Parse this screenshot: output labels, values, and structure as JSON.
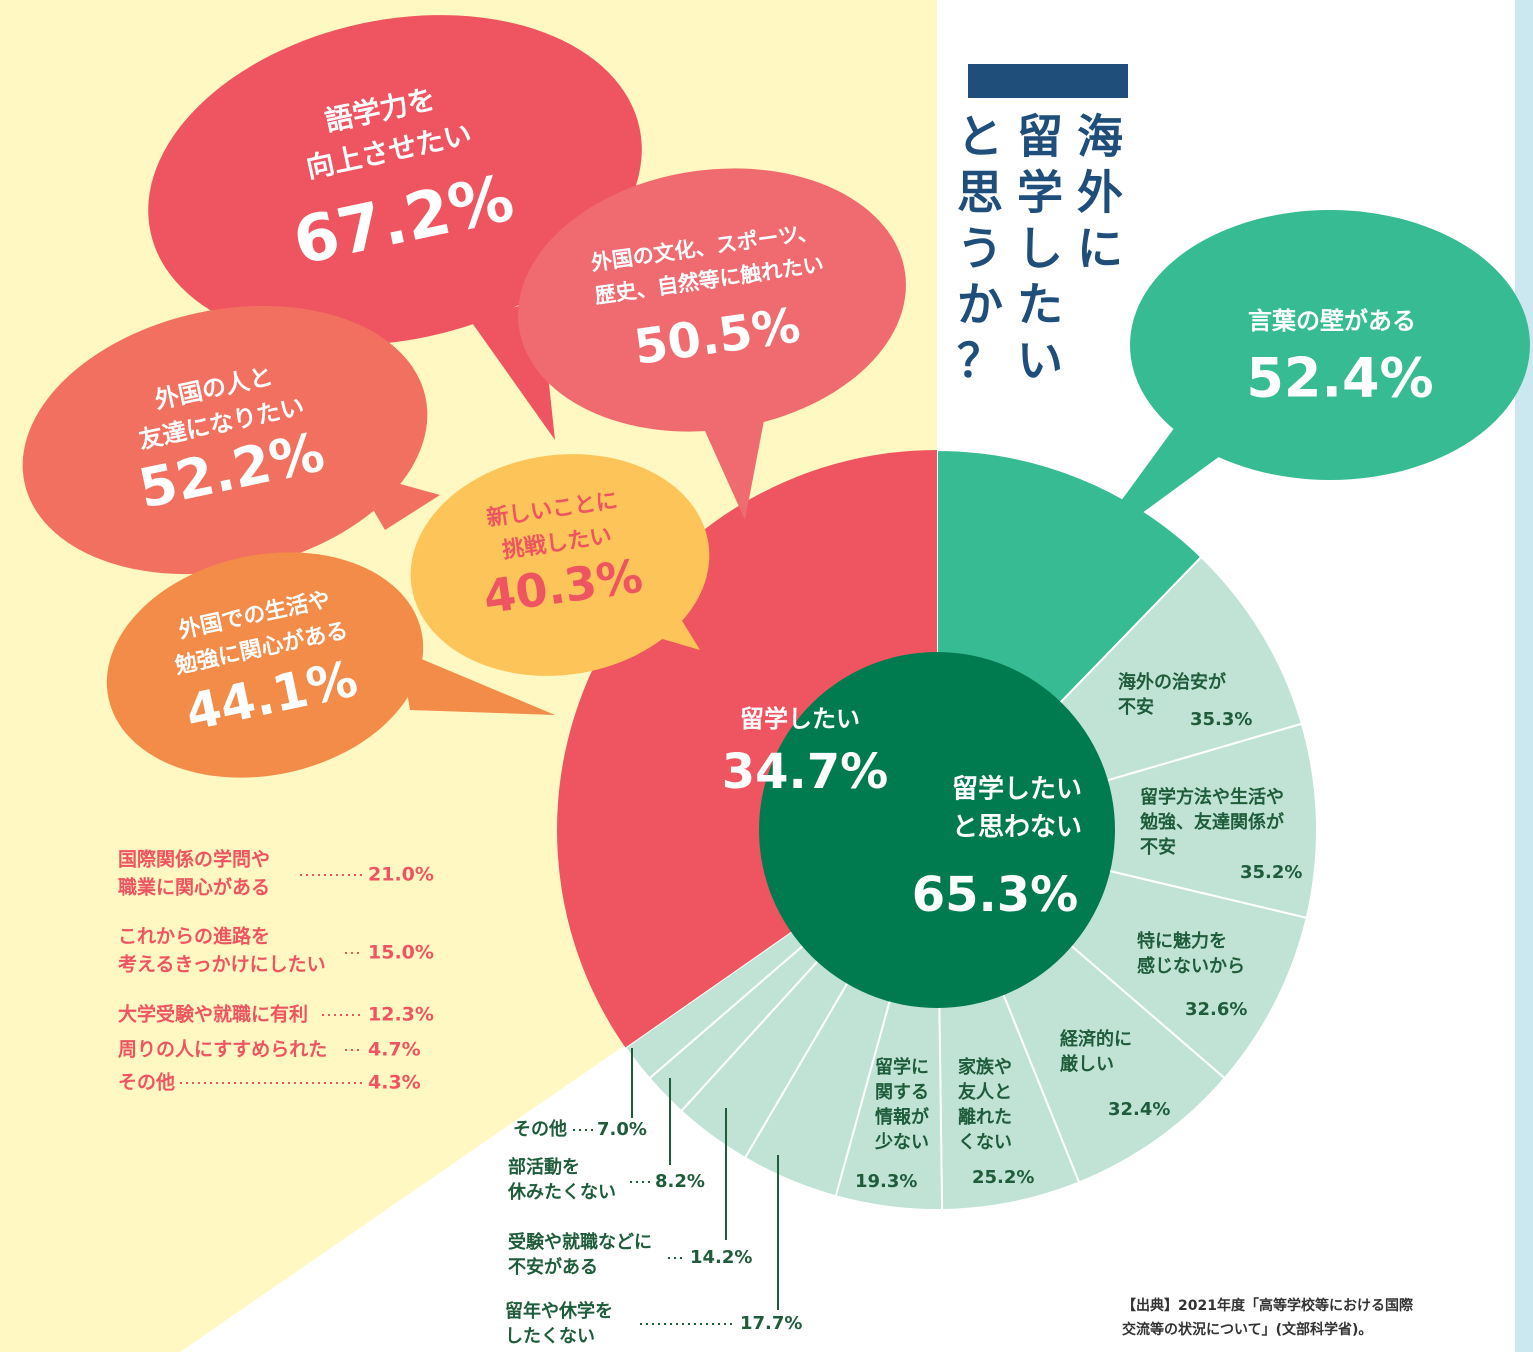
{
  "title_lines": [
    "海外に",
    "留学したい",
    "と思うか？"
  ],
  "main": [
    {
      "label": [
        "留学したい"
      ],
      "value": 34.7,
      "value_label": "34.7%"
    },
    {
      "label": [
        "留学したい",
        "と思わない"
      ],
      "value": 65.3,
      "value_label": "65.3%"
    }
  ],
  "want_bubbles": [
    {
      "label": [
        "語学力を",
        "向上させたい"
      ],
      "value": 67.2,
      "value_label": "67.2%"
    },
    {
      "label": [
        "外国の文化、スポーツ、",
        "歴史、自然等に触れたい"
      ],
      "value": 50.5,
      "value_label": "50.5%"
    },
    {
      "label": [
        "外国の人と",
        "友達になりたい"
      ],
      "value": 52.2,
      "value_label": "52.2%"
    },
    {
      "label": [
        "新しいことに",
        "挑戦したい"
      ],
      "value": 40.3,
      "value_label": "40.3%"
    },
    {
      "label": [
        "外国での生活や",
        "勉強に関心がある"
      ],
      "value": 44.1,
      "value_label": "44.1%"
    }
  ],
  "want_list": [
    {
      "label": [
        "国際関係の学問や",
        "職業に関心がある"
      ],
      "value": 21.0,
      "value_label": "21.0%"
    },
    {
      "label": [
        "これからの進路を",
        "考えるきっかけにしたい"
      ],
      "value": 15.0,
      "value_label": "15.0%"
    },
    {
      "label": [
        "大学受験や就職に有利"
      ],
      "value": 12.3,
      "value_label": "12.3%"
    },
    {
      "label": [
        "周りの人にすすめられた"
      ],
      "value": 4.7,
      "value_label": "4.7%"
    },
    {
      "label": [
        "その他"
      ],
      "value": 4.3,
      "value_label": "4.3%"
    }
  ],
  "not_reasons": [
    {
      "label": [
        "言葉の壁がある"
      ],
      "value": 52.4,
      "value_label": "52.4%"
    },
    {
      "label": [
        "海外の治安が",
        "不安"
      ],
      "value": 35.3,
      "value_label": "35.3%"
    },
    {
      "label": [
        "留学方法や生活や",
        "勉強、友達関係が",
        "不安"
      ],
      "value": 35.2,
      "value_label": "35.2%"
    },
    {
      "label": [
        "特に魅力を",
        "感じないから"
      ],
      "value": 32.6,
      "value_label": "32.6%"
    },
    {
      "label": [
        "経済的に",
        "厳しい"
      ],
      "value": 32.4,
      "value_label": "32.4%"
    },
    {
      "label": [
        "家族や",
        "友人と",
        "離れた",
        "くない"
      ],
      "value": 25.2,
      "value_label": "25.2%"
    },
    {
      "label": [
        "留学に",
        "関する",
        "情報が",
        "少ない"
      ],
      "value": 19.3,
      "value_label": "19.3%"
    },
    {
      "label": [
        "留年や休学を",
        "したくない"
      ],
      "value": 17.7,
      "value_label": "17.7%"
    },
    {
      "label": [
        "受験や就職などに",
        "不安がある"
      ],
      "value": 14.2,
      "value_label": "14.2%"
    },
    {
      "label": [
        "部活動を",
        "休みたくない"
      ],
      "value": 8.2,
      "value_label": "8.2%"
    },
    {
      "label": [
        "その他"
      ],
      "value": 7.0,
      "value_label": "7.0%"
    }
  ],
  "source": [
    "【出典】2021年度「高等学校等における国際",
    "交流等の状況について」(文部科学省)。"
  ]
}
